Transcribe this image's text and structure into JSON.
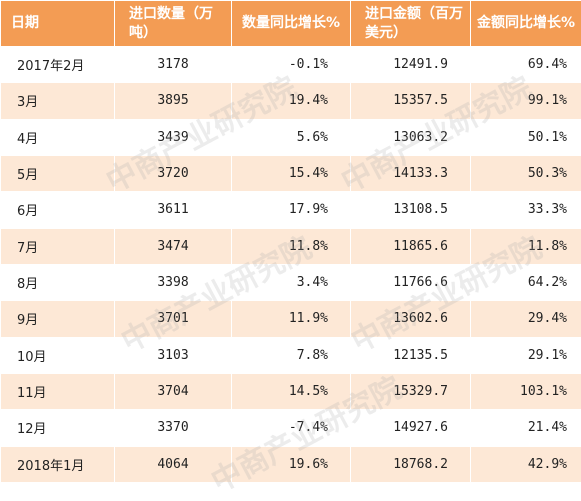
{
  "table": {
    "headers": [
      "日期",
      "进口数量（万吨）",
      "数量同比增长%",
      "进口金额（百万美元）",
      "金额同比增长%"
    ],
    "rows": [
      {
        "date": "2017年2月",
        "qty": "3178",
        "qty_yoy": "-0.1%",
        "amount": "12491.9",
        "amount_yoy": "69.4%"
      },
      {
        "date": "3月",
        "qty": "3895",
        "qty_yoy": "19.4%",
        "amount": "15357.5",
        "amount_yoy": "99.1%"
      },
      {
        "date": "4月",
        "qty": "3439",
        "qty_yoy": "5.6%",
        "amount": "13063.2",
        "amount_yoy": "50.1%"
      },
      {
        "date": "5月",
        "qty": "3720",
        "qty_yoy": "15.4%",
        "amount": "14133.3",
        "amount_yoy": "50.3%"
      },
      {
        "date": "6月",
        "qty": "3611",
        "qty_yoy": "17.9%",
        "amount": "13108.5",
        "amount_yoy": "33.3%"
      },
      {
        "date": "7月",
        "qty": "3474",
        "qty_yoy": "11.8%",
        "amount": "11865.6",
        "amount_yoy": "11.8%"
      },
      {
        "date": "8月",
        "qty": "3398",
        "qty_yoy": "3.4%",
        "amount": "11766.6",
        "amount_yoy": "64.2%"
      },
      {
        "date": "9月",
        "qty": "3701",
        "qty_yoy": "11.9%",
        "amount": "13602.6",
        "amount_yoy": "29.4%"
      },
      {
        "date": "10月",
        "qty": "3103",
        "qty_yoy": "7.8%",
        "amount": "12135.5",
        "amount_yoy": "29.1%"
      },
      {
        "date": "11月",
        "qty": "3704",
        "qty_yoy": "14.5%",
        "amount": "15329.7",
        "amount_yoy": "103.1%"
      },
      {
        "date": "12月",
        "qty": "3370",
        "qty_yoy": "-7.4%",
        "amount": "14927.6",
        "amount_yoy": "21.4%"
      },
      {
        "date": "2018年1月",
        "qty": "4064",
        "qty_yoy": "19.6%",
        "amount": "18768.2",
        "amount_yoy": "42.9%"
      }
    ]
  },
  "watermark": {
    "text": "中商产业研究院"
  },
  "colors": {
    "header_bg": "#f39c54",
    "header_text": "#ffffff",
    "stripe": "#fde8d6",
    "text": "#222222"
  }
}
